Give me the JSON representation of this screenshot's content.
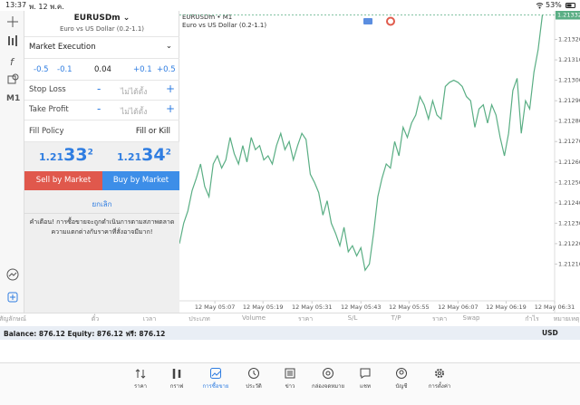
{
  "status_bar": {
    "time": "13:37",
    "date": "พ. 12 พ.ค.",
    "battery": "53%"
  },
  "toolbar": {
    "timeframe": "M1"
  },
  "order": {
    "symbol": "EURUSDm",
    "description": "Euro vs US Dollar (0.2-1.1)",
    "execution": "Market Execution",
    "volume_down": [
      "-0.5",
      "-0.1"
    ],
    "volume": "0.04",
    "volume_up": [
      "+0.1",
      "+0.5"
    ],
    "stop_loss": {
      "label": "Stop Loss",
      "minus": "-",
      "value": "ไม่ได้ตั้ง",
      "plus": "+"
    },
    "take_profit": {
      "label": "Take Profit",
      "minus": "-",
      "value": "ไม่ได้ตั้ง",
      "plus": "+"
    },
    "fill_policy": {
      "label": "Fill Policy",
      "value": "Fill or Kill"
    },
    "bid": {
      "big": "1.21",
      "pips": "33",
      "point": "2"
    },
    "ask": {
      "big": "1.21",
      "pips": "34",
      "point": "2"
    },
    "sell": "Sell by Market",
    "buy": "Buy by Market",
    "cancel": "ยกเลิก",
    "warning": [
      "คำเตือน! การซื้อขายจะถูกดำเนินการตามสภาพตลาด",
      "ความแตกต่างกับราคาที่สั่งอาจมีมาก!"
    ]
  },
  "chart_data": {
    "type": "line",
    "title": "EURUSDm • M1",
    "subtitle": "Euro vs US Dollar (0.2-1.1)",
    "color": "#5aae84",
    "values": [
      1.2122,
      1.2123,
      1.21236,
      1.21246,
      1.21252,
      1.21259,
      1.21248,
      1.21243,
      1.21259,
      1.21263,
      1.21257,
      1.21261,
      1.21272,
      1.21264,
      1.21259,
      1.21268,
      1.2126,
      1.21272,
      1.21266,
      1.21268,
      1.21261,
      1.21263,
      1.21259,
      1.21268,
      1.21274,
      1.21266,
      1.2127,
      1.21261,
      1.21268,
      1.21274,
      1.21271,
      1.21254,
      1.2125,
      1.21245,
      1.21234,
      1.21241,
      1.2123,
      1.21225,
      1.21219,
      1.21228,
      1.21216,
      1.21219,
      1.21214,
      1.21218,
      1.21207,
      1.2121,
      1.21225,
      1.21243,
      1.21252,
      1.21259,
      1.21257,
      1.2127,
      1.21263,
      1.21277,
      1.21272,
      1.21279,
      1.21283,
      1.21292,
      1.21288,
      1.21281,
      1.2129,
      1.21283,
      1.21281,
      1.21297,
      1.21299,
      1.213,
      1.21299,
      1.21297,
      1.21292,
      1.2129,
      1.21277,
      1.21286,
      1.21288,
      1.21279,
      1.21288,
      1.21283,
      1.21272,
      1.21263,
      1.21274,
      1.21295,
      1.21301,
      1.21274,
      1.2129,
      1.21286,
      1.21304,
      1.21315,
      1.21332
    ],
    "last_price": 1.21332,
    "xlim": [
      0,
      88.9
    ],
    "xticks": [
      {
        "value": 8.4,
        "label": "12 May 05:07"
      },
      {
        "value": 19.8,
        "label": "12 May 05:19"
      },
      {
        "value": 31.4,
        "label": "12 May 05:31"
      },
      {
        "value": 43,
        "label": "12 May 05:43"
      },
      {
        "value": 54.4,
        "label": "12 May 05:55"
      },
      {
        "value": 66,
        "label": "12 May 06:07"
      },
      {
        "value": 77.4,
        "label": "12 May 06:19"
      },
      {
        "value": 88.9,
        "label": "12 May 06:31"
      }
    ],
    "ylim": [
      1.21192,
      1.21334
    ],
    "yticks": [
      {
        "value": 1.2121,
        "label": "1.21210"
      },
      {
        "value": 1.2122,
        "label": "1.21220"
      },
      {
        "value": 1.2123,
        "label": "1.21230"
      },
      {
        "value": 1.2124,
        "label": "1.21240"
      },
      {
        "value": 1.2125,
        "label": "1.21250"
      },
      {
        "value": 1.2126,
        "label": "1.21260"
      },
      {
        "value": 1.2127,
        "label": "1.21270"
      },
      {
        "value": 1.2128,
        "label": "1.21280"
      },
      {
        "value": 1.2129,
        "label": "1.21290"
      },
      {
        "value": 1.213,
        "label": "1.21300"
      },
      {
        "value": 1.2131,
        "label": "1.21310"
      },
      {
        "value": 1.2132,
        "label": "1.21320"
      }
    ]
  },
  "trade_table": {
    "headers": [
      "สัญลักษณ์",
      "ตั๋ว",
      "เวลา",
      "ประเภท",
      "Volume",
      "ราคา",
      "S/L",
      "T/P",
      "ราคา",
      "Swap",
      "กำไร",
      "หมายเหตุ"
    ],
    "account": "Balance: 876.12 Equity: 876.12 ฟรี: 876.12",
    "currency": "USD"
  },
  "tabs": [
    "ราคา",
    "กราฟ",
    "การซื้อขาย",
    "ประวัติ",
    "ข่าว",
    "กล่องจดหมาย",
    "แชท",
    "บัญชี",
    "การตั้งค่า"
  ]
}
